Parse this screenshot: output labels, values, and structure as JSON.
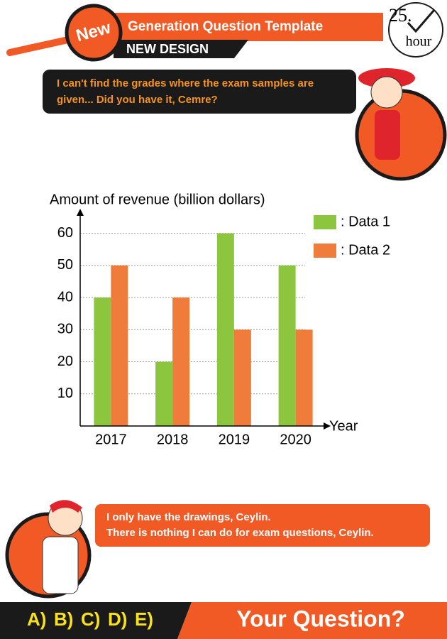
{
  "header": {
    "badge": "New",
    "title": "Generation Question Template",
    "subtitle": "NEW DESIGN",
    "time_number": "25.",
    "time_unit": "hour"
  },
  "speech_top": [
    "I can't find the grades where the exam samples are",
    "given... Did you have it, Cemre?"
  ],
  "chart_data": {
    "type": "bar",
    "y_label": "Amount of revenue (billion dollars)",
    "x_label": "Year",
    "categories": [
      "2017",
      "2018",
      "2019",
      "2020"
    ],
    "series": [
      {
        "name": ": Data 1",
        "color": "#8cc63e",
        "values": [
          40,
          20,
          60,
          50
        ]
      },
      {
        "name": ": Data 2",
        "color": "#f07c3c",
        "values": [
          50,
          40,
          30,
          30
        ]
      }
    ],
    "ylim": [
      0,
      65
    ],
    "yticks": [
      10,
      20,
      30,
      40,
      50,
      60
    ],
    "grid": true,
    "legend": "top-right"
  },
  "speech_bottom": [
    "I only have the drawings, Ceylin.",
    "There is nothing I can do for exam questions, Ceylin."
  ],
  "footer": {
    "answers": [
      "A)",
      "B)",
      "C)",
      "D)",
      "E)"
    ],
    "prompt": "Your Question?"
  }
}
